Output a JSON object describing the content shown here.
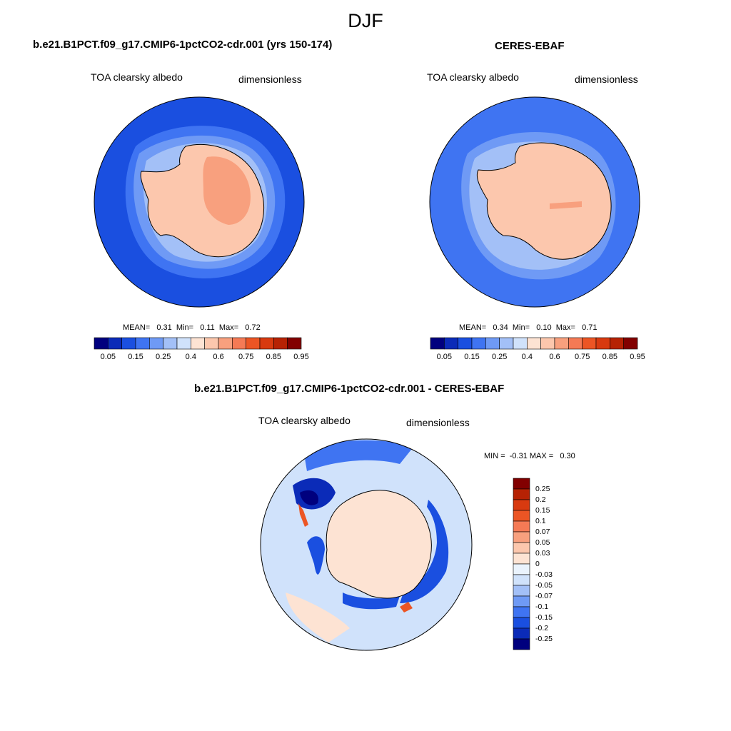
{
  "title": "DJF",
  "panels": {
    "model": {
      "case_title": "b.e21.B1PCT.f09_g17.CMIP6-1pctCO2-cdr.001 (yrs 150-174)",
      "variable": "TOA clearsky albedo",
      "units": "dimensionless",
      "stats": "MEAN=   0.31  Min=   0.11  Max=   0.72"
    },
    "obs": {
      "case_title": "CERES-EBAF",
      "variable": "TOA clearsky albedo",
      "units": "dimensionless",
      "stats": "MEAN=   0.34  Min=   0.10  Max=   0.71"
    },
    "diff": {
      "case_title": "b.e21.B1PCT.f09_g17.CMIP6-1pctCO2-cdr.001 - CERES-EBAF",
      "variable": "TOA clearsky albedo",
      "units": "dimensionless",
      "stats": "MIN =  -0.31 MAX =   0.30"
    }
  },
  "colorbar_abs": {
    "colors": [
      "#00007e",
      "#0b2bb8",
      "#1a4fe0",
      "#3f74f2",
      "#6f9af5",
      "#a3c0f7",
      "#d0e2fb",
      "#fde3d3",
      "#fcc7ad",
      "#f8a07e",
      "#f57a55",
      "#ec5524",
      "#d83a10",
      "#b62204",
      "#820000"
    ],
    "labels": [
      "0.05",
      "0.15",
      "0.25",
      "0.4",
      "0.6",
      "0.75",
      "0.85",
      "0.95"
    ]
  },
  "colorbar_diff": {
    "colors": [
      "#820000",
      "#b62204",
      "#d83a10",
      "#ec5524",
      "#f57a55",
      "#f8a07e",
      "#fcc7ad",
      "#fde3d3",
      "#eaf3fd",
      "#d0e2fb",
      "#a3c0f7",
      "#6f9af5",
      "#3f74f2",
      "#1a4fe0",
      "#0b2bb8",
      "#00007e"
    ],
    "labels": [
      "0.25",
      "0.2",
      "0.15",
      "0.1",
      "0.07",
      "0.05",
      "0.03",
      "0",
      "-0.03",
      "-0.05",
      "-0.07",
      "-0.1",
      "-0.15",
      "-0.2",
      "-0.25"
    ]
  },
  "map_colors": {
    "ocean_low": "#1a4fe0",
    "ice_edge_1": "#3f74f2",
    "ice_edge_2": "#6f9af5",
    "ice_edge_3": "#a3c0f7",
    "ice_edge_4": "#d0e2fb",
    "land": "#fcc7ad",
    "land_high": "#f8a07e",
    "diff_bg": "#d0e2fb",
    "diff_pos": "#fde3d3"
  }
}
